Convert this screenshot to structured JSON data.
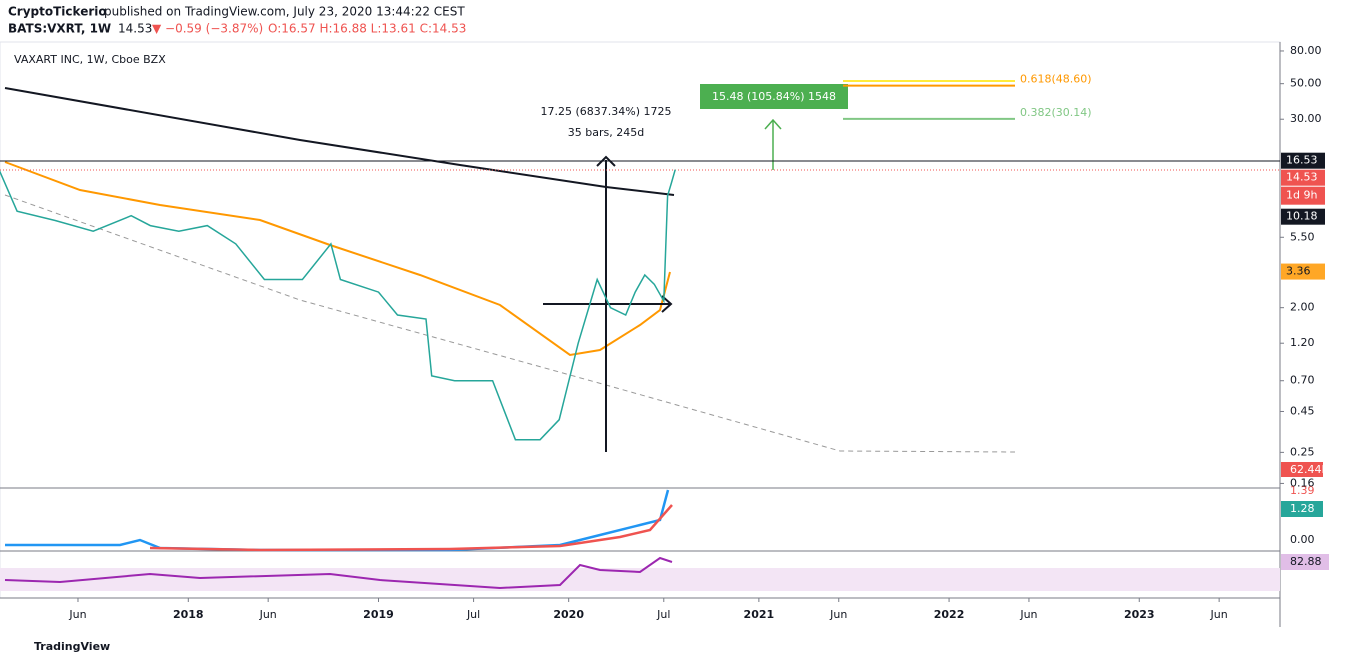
{
  "header": {
    "author": "CryptoTickerio",
    "published": "published on TradingView.com, July 23, 2020 13:44:22 CEST",
    "symbol": "BATS:VXRT, 1W",
    "last": "14.53",
    "change": "▼ −0.59 (−3.87%)",
    "ohlc": "O:16.57 H:16.88 L:13.61 C:14.53"
  },
  "chart_data": {
    "type": "line",
    "title": "VAXART INC, 1W, Cboe BZX",
    "log_scale": true,
    "color": "#26a69a",
    "x": [
      2017.0,
      2017.1,
      2017.3,
      2017.5,
      2017.7,
      2017.8,
      2017.95,
      2018.1,
      2018.25,
      2018.4,
      2018.6,
      2018.75,
      2018.8,
      2019.0,
      2019.1,
      2019.25,
      2019.28,
      2019.4,
      2019.6,
      2019.72,
      2019.85,
      2019.95,
      2020.05,
      2020.15,
      2020.22,
      2020.3,
      2020.35,
      2020.4,
      2020.45,
      2020.5,
      2020.52,
      2020.54,
      2020.56
    ],
    "values": [
      15,
      8,
      7,
      6,
      7.5,
      6.5,
      6,
      6.5,
      5,
      3,
      3,
      5,
      3,
      2.5,
      1.8,
      1.7,
      0.75,
      0.7,
      0.7,
      0.3,
      0.3,
      0.4,
      1.2,
      3,
      2,
      1.8,
      2.5,
      3.2,
      2.8,
      2.2,
      10,
      12,
      14.53
    ],
    "ylim": [
      0.152,
      91
    ],
    "yticks": [
      {
        "value": 80,
        "label": "80.00"
      },
      {
        "value": 50,
        "label": "50.00"
      },
      {
        "value": 30,
        "label": "30.00"
      },
      {
        "value": 5.5,
        "label": "5.50"
      },
      {
        "value": 2,
        "label": "2.00"
      },
      {
        "value": 1.2,
        "label": "1.20"
      },
      {
        "value": 0.7,
        "label": "0.70"
      },
      {
        "value": 0.45,
        "label": "0.45"
      },
      {
        "value": 0.25,
        "label": "0.25"
      },
      {
        "value": 0.16,
        "label": "0.16"
      }
    ],
    "xlim": [
      2017.01,
      2023.74
    ],
    "xticks": [
      {
        "value": 2017.42,
        "label": "Jun"
      },
      {
        "value": 2018,
        "label": "2018"
      },
      {
        "value": 2018.42,
        "label": "Jun"
      },
      {
        "value": 2019,
        "label": "2019"
      },
      {
        "value": 2019.5,
        "label": "Jul"
      },
      {
        "value": 2020,
        "label": "2020"
      },
      {
        "value": 2020.5,
        "label": "Jul"
      },
      {
        "value": 2021,
        "label": "2021"
      },
      {
        "value": 2021.42,
        "label": "Jun"
      },
      {
        "value": 2022,
        "label": "2022"
      },
      {
        "value": 2022.42,
        "label": "Jun"
      },
      {
        "value": 2023,
        "label": "2023"
      },
      {
        "value": 2023.42,
        "label": "Jun"
      }
    ],
    "price_labels": [
      {
        "value": 16.53,
        "color": "#131722"
      },
      {
        "value": 14.53,
        "color": "#ef5350"
      },
      {
        "value": 10.18,
        "color": "#131722"
      },
      {
        "value": 3.36,
        "color": "#ffa726"
      }
    ],
    "countdown": "1d 9h",
    "fib": [
      {
        "label": "0.382(30.14)",
        "price": 30.14,
        "color": "#81c784"
      },
      {
        "label": "0.618(48.60)",
        "price": 48.6,
        "color": "#ff9800"
      }
    ],
    "measure_box": "15.48 (105.84%) 1548",
    "range_text": "17.25 (6837.34%) 1725",
    "bars_text": "35 bars, 245d"
  },
  "indicators": {
    "volume_label": "62.44M",
    "macd_high": "1.39",
    "macd_signal": "1.28",
    "macd_zero": "0.00",
    "rsi_label": "82.88"
  },
  "footer": "TradingView"
}
